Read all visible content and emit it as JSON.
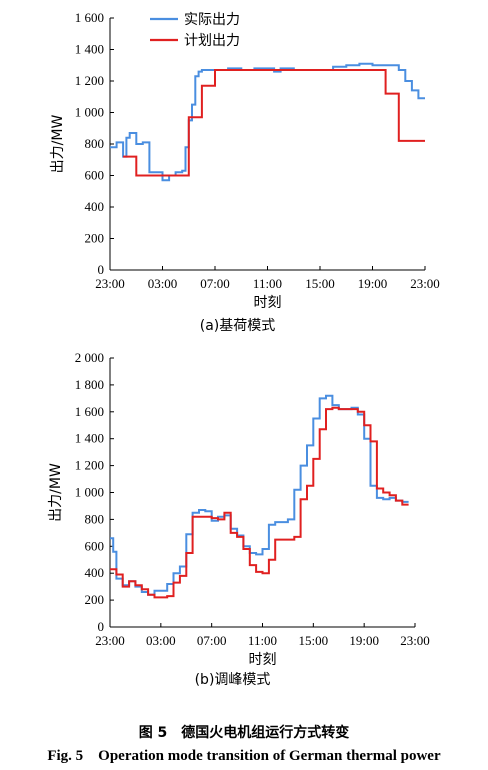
{
  "figure": {
    "caption_cn": "图 5　德国火电机组运行方式转变",
    "caption_en": "Fig. 5　Operation mode transition of German thermal power"
  },
  "colors": {
    "actual": "#4a8ee0",
    "planned": "#e02020"
  },
  "chart_data": [
    {
      "type": "line",
      "subtitle": "(a)基荷模式",
      "xlabel": "时刻",
      "ylabel": "出力/MW",
      "x_ticks": [
        "23:00",
        "03:00",
        "07:00",
        "11:00",
        "15:00",
        "19:00",
        "23:00"
      ],
      "x_range_hours": [
        0,
        24
      ],
      "y_ticks": [
        "0",
        "200",
        "400",
        "600",
        "800",
        "1 000",
        "1 200",
        "1 400",
        "1 600"
      ],
      "ylim": [
        0,
        1600
      ],
      "legend": {
        "position": "top-left",
        "entries": [
          "实际出力",
          "计划出力"
        ]
      },
      "series": [
        {
          "name": "实际出力",
          "x": [
            0,
            0.5,
            1,
            1.25,
            1.5,
            2,
            2.5,
            3,
            4,
            4.5,
            5,
            5.5,
            5.75,
            6,
            6.25,
            6.5,
            6.75,
            7,
            7.5,
            8,
            9,
            10,
            11,
            12,
            12.5,
            13,
            14,
            15,
            16,
            17,
            18,
            19,
            20,
            21,
            22,
            22.5,
            23,
            23.5
          ],
          "y": [
            780,
            810,
            720,
            840,
            870,
            800,
            810,
            620,
            570,
            600,
            620,
            630,
            780,
            950,
            1050,
            1230,
            1260,
            1270,
            1270,
            1270,
            1280,
            1270,
            1280,
            1280,
            1260,
            1280,
            1270,
            1270,
            1270,
            1290,
            1300,
            1310,
            1300,
            1300,
            1270,
            1200,
            1140,
            1090
          ]
        },
        {
          "name": "计划出力",
          "x": [
            1,
            2,
            3,
            4,
            5,
            6,
            7,
            8,
            9,
            10,
            11,
            12,
            13,
            14,
            15,
            16,
            17,
            18,
            19,
            20,
            21,
            22,
            23,
            23.5
          ],
          "y": [
            720,
            600,
            600,
            600,
            600,
            970,
            1170,
            1270,
            1270,
            1270,
            1270,
            1270,
            1270,
            1270,
            1270,
            1270,
            1270,
            1270,
            1270,
            1270,
            1120,
            820,
            820,
            820
          ]
        }
      ]
    },
    {
      "type": "line",
      "subtitle": "(b)调峰模式",
      "xlabel": "时刻",
      "ylabel": "出力/MW",
      "x_ticks": [
        "23:00",
        "03:00",
        "07:00",
        "11:00",
        "15:00",
        "19:00",
        "23:00"
      ],
      "x_range_hours": [
        0,
        24
      ],
      "y_ticks": [
        "0",
        "200",
        "400",
        "600",
        "800",
        "1 000",
        "1 200",
        "1 400",
        "1 600",
        "1 800",
        "2 000"
      ],
      "ylim": [
        0,
        2000
      ],
      "series": [
        {
          "name": "实际出力",
          "x": [
            0,
            0.25,
            0.5,
            1,
            1.5,
            2,
            2.5,
            3,
            3.5,
            4,
            4.5,
            5,
            5.5,
            6,
            6.5,
            7,
            7.5,
            8,
            8.5,
            9,
            9.5,
            10,
            10.5,
            11,
            11.5,
            12,
            12.5,
            13,
            13.5,
            14,
            14.5,
            15,
            15.5,
            16,
            16.5,
            17,
            17.5,
            18,
            18.5,
            19,
            19.5,
            20,
            20.5,
            21,
            21.5,
            22,
            22.5,
            23
          ],
          "y": [
            660,
            560,
            360,
            310,
            340,
            300,
            260,
            240,
            270,
            270,
            320,
            400,
            450,
            690,
            850,
            870,
            860,
            790,
            820,
            830,
            730,
            680,
            600,
            550,
            540,
            580,
            760,
            780,
            780,
            800,
            1020,
            1200,
            1350,
            1550,
            1700,
            1720,
            1650,
            1620,
            1620,
            1630,
            1580,
            1400,
            1050,
            960,
            950,
            960,
            940,
            930
          ]
        },
        {
          "name": "计划出力",
          "x": [
            0,
            0.5,
            1,
            1.5,
            2,
            2.5,
            3,
            3.5,
            4,
            4.5,
            5,
            5.5,
            6,
            6.5,
            7,
            7.5,
            8,
            8.5,
            9,
            9.5,
            10,
            10.5,
            11,
            11.5,
            12,
            12.5,
            13,
            13.5,
            14,
            14.5,
            15,
            15.5,
            16,
            16.5,
            17,
            17.5,
            18,
            18.5,
            19,
            19.5,
            20,
            20.5,
            21,
            21.5,
            22,
            22.5,
            23
          ],
          "y": [
            430,
            390,
            300,
            340,
            310,
            280,
            240,
            220,
            220,
            230,
            330,
            380,
            550,
            820,
            820,
            820,
            810,
            800,
            850,
            700,
            670,
            580,
            460,
            410,
            400,
            500,
            650,
            650,
            650,
            670,
            950,
            1050,
            1250,
            1470,
            1620,
            1630,
            1620,
            1620,
            1620,
            1600,
            1500,
            1380,
            1030,
            1000,
            980,
            940,
            910
          ]
        }
      ]
    }
  ]
}
